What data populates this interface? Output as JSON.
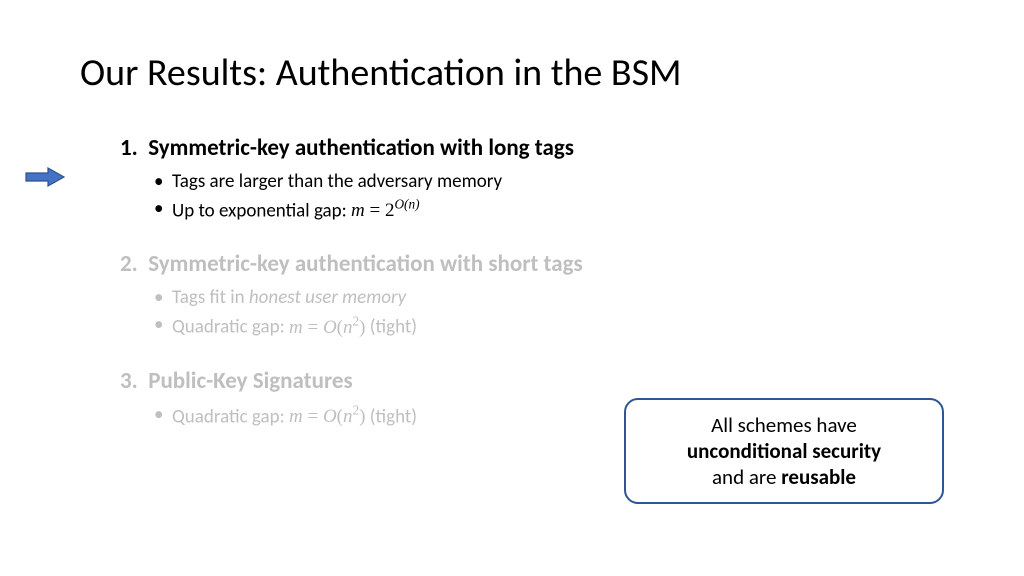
{
  "title": "Our Results: Authentication in the BSM",
  "colors": {
    "active_text": "#000000",
    "dim_text": "#bfbfbf",
    "arrow_fill": "#4472c4",
    "arrow_stroke": "#2f528f",
    "callout_border": "#2f5597",
    "background": "#ffffff"
  },
  "typography": {
    "title_fontsize": 38,
    "heading_fontsize": 23,
    "bullet_fontsize": 19,
    "callout_fontsize": 21,
    "title_weight": 400,
    "heading_weight": 700
  },
  "items": [
    {
      "num": "1.",
      "heading": "Symmetric-key authentication with long tags",
      "state": "active",
      "bullets": [
        {
          "text": "Tags are larger than the adversary memory"
        },
        {
          "prefix": "Up to exponential gap: ",
          "math_html": "<span class='math'>m <span class='upright'>= 2</span><sup>O(n)</sup></span>"
        }
      ]
    },
    {
      "num": "2.",
      "heading": "Symmetric-key authentication with short tags",
      "state": "dim",
      "bullets": [
        {
          "html": "Tags fit in <span class='ital'>honest user memory</span>"
        },
        {
          "prefix": "Quadratic gap: ",
          "math_html": "<span class='math'>m <span class='upright'>=</span> O<span class='upright'>(</span>n<sup><span class='upright'>2</span></sup><span class='upright'>)</span></span>",
          "suffix": " (tight)"
        }
      ]
    },
    {
      "num": "3.",
      "heading": "Public-Key Signatures",
      "state": "dim",
      "bullets": [
        {
          "prefix": "Quadratic gap: ",
          "math_html": "<span class='math'>m <span class='upright'>=</span> O<span class='upright'>(</span>n<sup><span class='upright'>2</span></sup><span class='upright'>)</span></span>",
          "suffix": " (tight)"
        }
      ]
    }
  ],
  "callout": {
    "line1": "All schemes have",
    "line2_bold": "unconditional security",
    "line3_pre": "and are ",
    "line3_bold": "reusable"
  }
}
